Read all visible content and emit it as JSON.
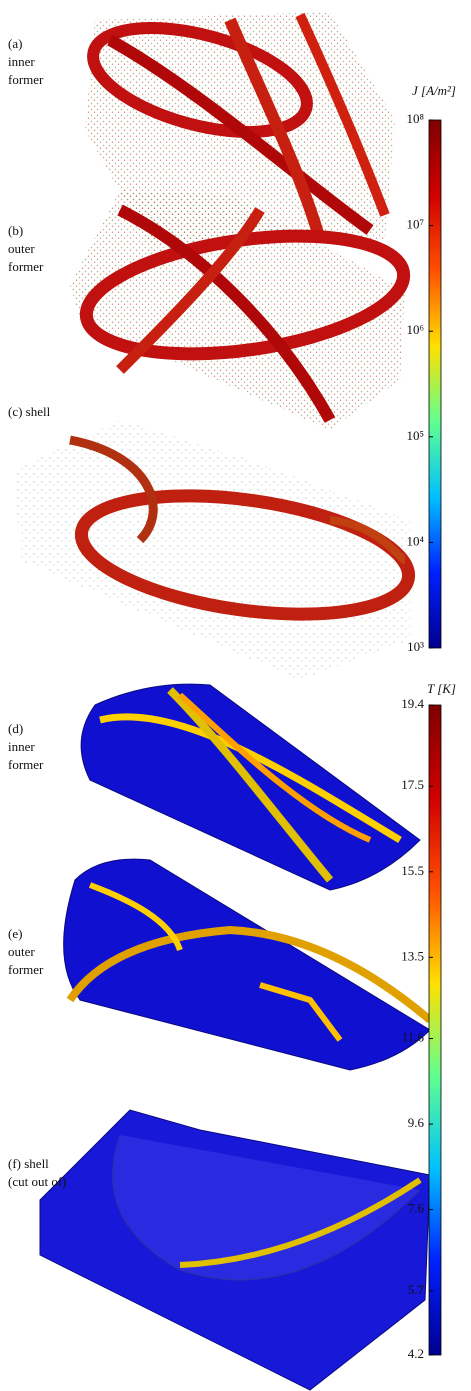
{
  "panels": [
    {
      "label": [
        "(a)",
        "inner",
        "former"
      ]
    },
    {
      "label": [
        "(b)",
        "outer",
        "former"
      ]
    },
    {
      "label": [
        "(c) shell"
      ]
    },
    {
      "label": [
        "(d)",
        "inner",
        "former"
      ]
    },
    {
      "label": [
        "(e)",
        "outer",
        "former"
      ]
    },
    {
      "label": [
        "(f) shell",
        "(cut out of)"
      ]
    }
  ],
  "colorbars": [
    {
      "title": "J [A/m²]",
      "scale": "log",
      "range": [
        1000,
        100000000
      ],
      "ticks": [
        {
          "value": 100000000,
          "label": "10⁸"
        },
        {
          "value": 10000000,
          "label": "10⁷"
        },
        {
          "value": 1000000,
          "label": "10⁶"
        },
        {
          "value": 100000,
          "label": "10⁵"
        },
        {
          "value": 10000,
          "label": "10⁴"
        },
        {
          "value": 1000,
          "label": "10³"
        }
      ],
      "colors": [
        "#00008f",
        "#0020ff",
        "#00c0ff",
        "#60ff90",
        "#ffe000",
        "#ff5000",
        "#d00000",
        "#7f0000"
      ]
    },
    {
      "title": "T [K]",
      "scale": "linear",
      "range": [
        4.2,
        19.4
      ],
      "ticks": [
        19.4,
        17.5,
        15.5,
        13.5,
        11.6,
        9.6,
        7.6,
        5.7,
        4.2
      ],
      "colors": [
        "#00008f",
        "#0020ff",
        "#00c0ff",
        "#60ff90",
        "#ffe000",
        "#ff5000",
        "#d00000",
        "#7f0000"
      ]
    }
  ]
}
